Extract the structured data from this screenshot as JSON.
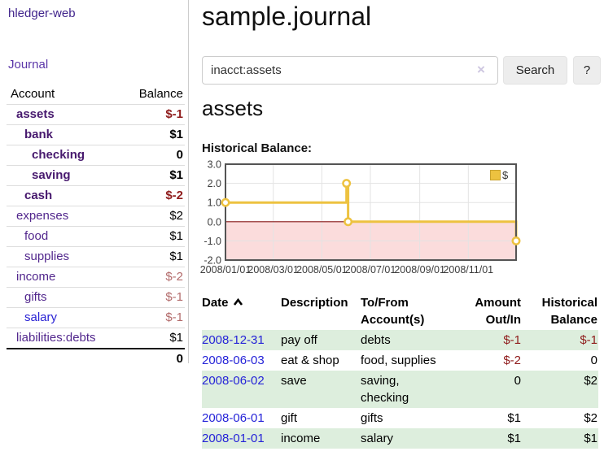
{
  "sidebar": {
    "brand": "hledger-web",
    "journal_link": "Journal",
    "accounts_table": {
      "account_header": "Account",
      "balance_header": "Balance",
      "rows": [
        {
          "name": "assets",
          "balance": "$-1",
          "depth": 1,
          "bold": true,
          "balance_class": "neg-strong"
        },
        {
          "name": "bank",
          "balance": "$1",
          "depth": 2,
          "bold": true,
          "balance_class": ""
        },
        {
          "name": "checking",
          "balance": "0",
          "depth": 3,
          "bold": true,
          "balance_class": ""
        },
        {
          "name": "saving",
          "balance": "$1",
          "depth": 3,
          "bold": true,
          "balance_class": ""
        },
        {
          "name": "cash",
          "balance": "$-2",
          "depth": 2,
          "bold": true,
          "balance_class": "neg-strong"
        },
        {
          "name": "expenses",
          "balance": "$2",
          "depth": 1,
          "bold": false,
          "balance_class": ""
        },
        {
          "name": "food",
          "balance": "$1",
          "depth": 2,
          "bold": false,
          "balance_class": ""
        },
        {
          "name": "supplies",
          "balance": "$1",
          "depth": 2,
          "bold": false,
          "balance_class": ""
        },
        {
          "name": "income",
          "balance": "$-2",
          "depth": 1,
          "bold": false,
          "balance_class": "neg-soft"
        },
        {
          "name": "gifts",
          "balance": "$-1",
          "depth": 2,
          "bold": false,
          "balance_class": "neg-soft"
        },
        {
          "name": "salary",
          "balance": "$-1",
          "depth": 2,
          "bold": false,
          "balance_class": "neg-soft",
          "link_style": "blue"
        },
        {
          "name": "liabilities:debts",
          "balance": "$1",
          "depth": 1,
          "bold": false,
          "balance_class": ""
        }
      ],
      "total": "0"
    }
  },
  "header": {
    "title": "sample.journal"
  },
  "search": {
    "value": "inacct:assets",
    "clear_icon": "×",
    "button": "Search",
    "help": "?"
  },
  "account_page": {
    "heading": "assets",
    "chart_title": "Historical Balance:"
  },
  "chart_data": {
    "type": "line",
    "step": true,
    "series": [
      {
        "name": "$",
        "color": "#EDC240",
        "points": [
          [
            "2008/01/01",
            1
          ],
          [
            "2008/06/01",
            2
          ],
          [
            "2008/06/03",
            0
          ],
          [
            "2008/12/31",
            -1
          ]
        ]
      }
    ],
    "x_start": "2008/01/01",
    "x_end": "2008/12/31",
    "x_tick_labels": [
      "2008/01/01",
      "2008/03/01",
      "2008/05/01",
      "2008/07/01",
      "2008/09/01",
      "2008/11/01"
    ],
    "y_tick_labels": [
      "3.0",
      "2.0",
      "1.0",
      "0.0",
      "-1.0",
      "-2.0"
    ],
    "ylim": [
      -2,
      3
    ],
    "grid": true,
    "legend": {
      "label": "$",
      "position": "top-right"
    },
    "negative_fill": "#fbdcdc",
    "zero_line_color": "#8b1a1a"
  },
  "register_table": {
    "headers": [
      "Date",
      "Description",
      "To/From Account(s)",
      "Amount Out/In",
      "Historical Balance"
    ],
    "sort": {
      "column": "Date",
      "direction": "ascending"
    },
    "rows": [
      {
        "date": "2008-12-31",
        "description": "pay off",
        "accounts": "debts",
        "amount": "$-1",
        "amount_class": "neg",
        "balance": "$-1",
        "balance_class": "neg"
      },
      {
        "date": "2008-06-03",
        "description": "eat & shop",
        "accounts": "food, supplies",
        "amount": "$-2",
        "amount_class": "neg",
        "balance": "0",
        "balance_class": ""
      },
      {
        "date": "2008-06-02",
        "description": "save",
        "accounts": "saving, checking",
        "amount": "0",
        "amount_class": "",
        "balance": "$2",
        "balance_class": ""
      },
      {
        "date": "2008-06-01",
        "description": "gift",
        "accounts": "gifts",
        "amount": "$1",
        "amount_class": "",
        "balance": "$2",
        "balance_class": ""
      },
      {
        "date": "2008-01-01",
        "description": "income",
        "accounts": "salary",
        "amount": "$1",
        "amount_class": "",
        "balance": "$1",
        "balance_class": ""
      }
    ]
  },
  "colors": {
    "link_purple": "#52278d",
    "link_blue": "#2523d8",
    "negative_strong": "#8f1c1c",
    "negative_soft": "#b36b6b",
    "row_stripe_green": "#ddeedd",
    "chart_gold": "#EDC240"
  }
}
